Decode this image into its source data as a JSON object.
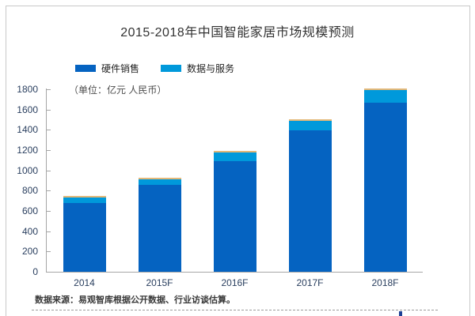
{
  "chart": {
    "title": "2015-2018年中国智能家居市场规模预测",
    "unit_note": "（单位：亿元 人民币）",
    "source_note": "数据来源：易观智库根据公开数据、行业访谈估算。"
  },
  "chart_data": {
    "type": "bar",
    "stacked": true,
    "title": "2015-2018年中国智能家居市场规模预测",
    "unit": "亿元 人民币",
    "categories": [
      "2014",
      "2015F",
      "2016F",
      "2017F",
      "2018F"
    ],
    "series": [
      {
        "name": "硬件销售",
        "color": "#0563C1",
        "values": [
          675,
          855,
          1090,
          1395,
          1665
        ]
      },
      {
        "name": "数据与服务",
        "color": "#0099DB",
        "values": [
          55,
          60,
          90,
          95,
          130
        ]
      }
    ],
    "stack_totals_approx": [
      730,
      915,
      1180,
      1490,
      1795
    ],
    "bar_top_accent_color": "#E3B878",
    "ylim": [
      0,
      1800
    ],
    "ytick_step": 200,
    "y_ticks": [
      0,
      200,
      400,
      600,
      800,
      1000,
      1200,
      1400,
      1600,
      1800
    ],
    "legend_position": "top-left",
    "grid": false,
    "source": "数据来源：易观智库根据公开数据、行业访谈估算。"
  },
  "colors": {
    "hardware_bar": "#0563C1",
    "services_bar": "#0099DB",
    "bar_top_accent": "#E3B878",
    "axis": "#a6a6a6",
    "frame_border": "#c9c9c9",
    "axis_label_text": "#2a3f5f"
  }
}
